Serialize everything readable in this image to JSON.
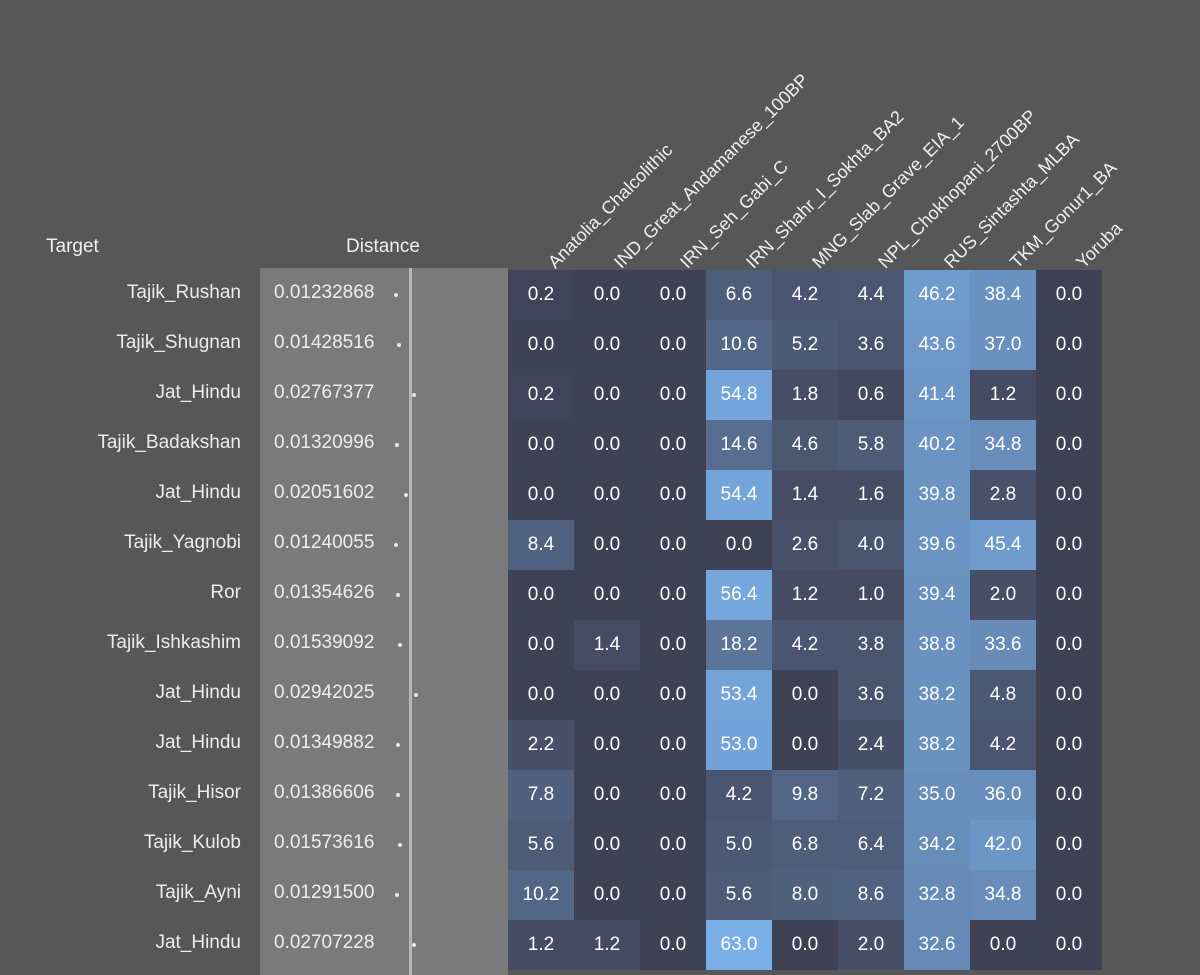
{
  "chart_data": {
    "type": "heatmap",
    "headers": {
      "target": "Target",
      "distance": "Distance"
    },
    "columns": [
      "Anatolia_Chalcolithic",
      "IND_Great_Andamanese_100BP",
      "IRN_Seh_Gabi_C",
      "IRN_Shahr_I_Sokhta_BA2",
      "MNG_Slab_Grave_EIA_1",
      "NPL_Chokhopani_2700BP",
      "RUS_Sintashta_MLBA",
      "TKM_Gonur1_BA",
      "Yoruba"
    ],
    "rows": [
      {
        "target": "Tajik_Rushan",
        "distance": "0.01232868",
        "values": [
          "0.2",
          "0.0",
          "0.0",
          "6.6",
          "4.2",
          "4.4",
          "46.2",
          "38.4",
          "0.0"
        ]
      },
      {
        "target": "Tajik_Shugnan",
        "distance": "0.01428516",
        "values": [
          "0.0",
          "0.0",
          "0.0",
          "10.6",
          "5.2",
          "3.6",
          "43.6",
          "37.0",
          "0.0"
        ]
      },
      {
        "target": "Jat_Hindu",
        "distance": "0.02767377",
        "values": [
          "0.2",
          "0.0",
          "0.0",
          "54.8",
          "1.8",
          "0.6",
          "41.4",
          "1.2",
          "0.0"
        ]
      },
      {
        "target": "Tajik_Badakshan",
        "distance": "0.01320996",
        "values": [
          "0.0",
          "0.0",
          "0.0",
          "14.6",
          "4.6",
          "5.8",
          "40.2",
          "34.8",
          "0.0"
        ]
      },
      {
        "target": "Jat_Hindu",
        "distance": "0.02051602",
        "values": [
          "0.0",
          "0.0",
          "0.0",
          "54.4",
          "1.4",
          "1.6",
          "39.8",
          "2.8",
          "0.0"
        ]
      },
      {
        "target": "Tajik_Yagnobi",
        "distance": "0.01240055",
        "values": [
          "8.4",
          "0.0",
          "0.0",
          "0.0",
          "2.6",
          "4.0",
          "39.6",
          "45.4",
          "0.0"
        ]
      },
      {
        "target": "Ror",
        "distance": "0.01354626",
        "values": [
          "0.0",
          "0.0",
          "0.0",
          "56.4",
          "1.2",
          "1.0",
          "39.4",
          "2.0",
          "0.0"
        ]
      },
      {
        "target": "Tajik_Ishkashim",
        "distance": "0.01539092",
        "values": [
          "0.0",
          "1.4",
          "0.0",
          "18.2",
          "4.2",
          "3.8",
          "38.8",
          "33.6",
          "0.0"
        ]
      },
      {
        "target": "Jat_Hindu",
        "distance": "0.02942025",
        "values": [
          "0.0",
          "0.0",
          "0.0",
          "53.4",
          "0.0",
          "3.6",
          "38.2",
          "4.8",
          "0.0"
        ]
      },
      {
        "target": "Jat_Hindu",
        "distance": "0.01349882",
        "values": [
          "2.2",
          "0.0",
          "0.0",
          "53.0",
          "0.0",
          "2.4",
          "38.2",
          "4.2",
          "0.0"
        ]
      },
      {
        "target": "Tajik_Hisor",
        "distance": "0.01386606",
        "values": [
          "7.8",
          "0.0",
          "0.0",
          "4.2",
          "9.8",
          "7.2",
          "35.0",
          "36.0",
          "0.0"
        ]
      },
      {
        "target": "Tajik_Kulob",
        "distance": "0.01573616",
        "values": [
          "5.6",
          "0.0",
          "0.0",
          "5.0",
          "6.8",
          "6.4",
          "34.2",
          "42.0",
          "0.0"
        ]
      },
      {
        "target": "Tajik_Ayni",
        "distance": "0.01291500",
        "values": [
          "10.2",
          "0.0",
          "0.0",
          "5.6",
          "8.0",
          "8.6",
          "32.8",
          "34.8",
          "0.0"
        ]
      },
      {
        "target": "Jat_Hindu",
        "distance": "0.02707228",
        "values": [
          "1.2",
          "1.2",
          "0.0",
          "63.0",
          "0.0",
          "2.0",
          "32.6",
          "0.0",
          "0.0"
        ]
      }
    ],
    "colors": {
      "background": "#575757",
      "distance_panel": "#7a7a7a",
      "heat_low": "#3f4154",
      "heat_high": "#79aee6"
    }
  }
}
